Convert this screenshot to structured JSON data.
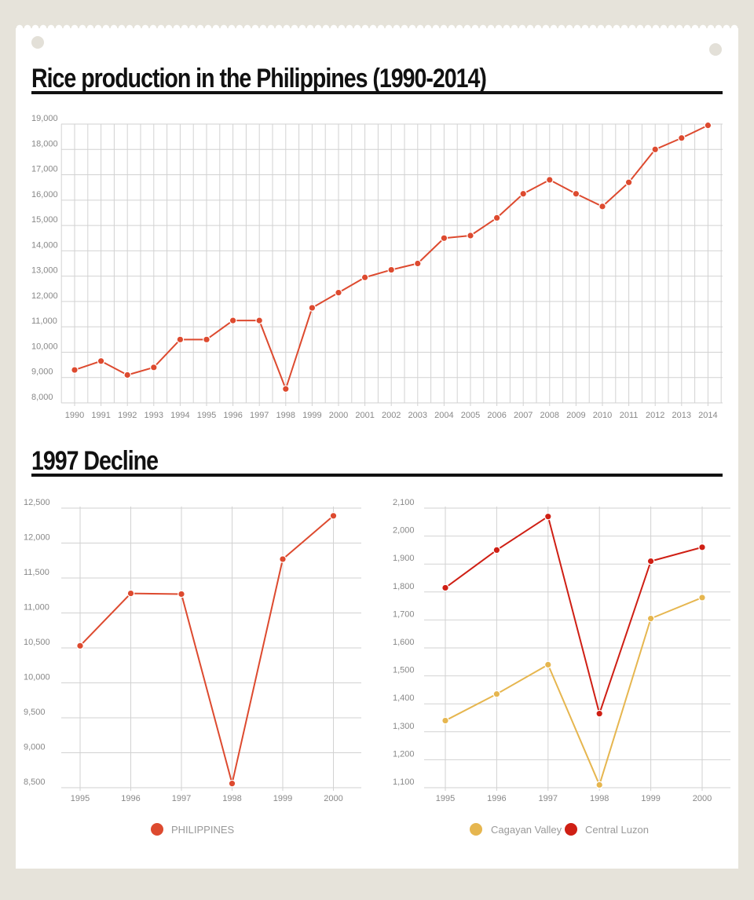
{
  "chart_data": [
    {
      "type": "line",
      "title": "Rice production in the Philippines (1990-2014)",
      "x": [
        "1990",
        "1991",
        "1992",
        "1993",
        "1994",
        "1995",
        "1996",
        "1997",
        "1998",
        "1999",
        "2000",
        "2001",
        "2002",
        "2003",
        "2004",
        "2005",
        "2006",
        "2007",
        "2008",
        "2009",
        "2010",
        "2011",
        "2012",
        "2013",
        "2014"
      ],
      "series": [
        {
          "name": "Philippines",
          "color": "#dd4a2f",
          "values": [
            9300,
            9650,
            9100,
            9400,
            10500,
            10500,
            11250,
            11250,
            8550,
            11750,
            12350,
            12950,
            13250,
            13500,
            14500,
            14600,
            15300,
            16250,
            16800,
            16250,
            15750,
            16700,
            18000,
            18450,
            18950
          ]
        }
      ],
      "ylim": [
        8000,
        19000
      ],
      "yticks": [
        8000,
        9000,
        10000,
        11000,
        12000,
        13000,
        14000,
        15000,
        16000,
        17000,
        18000,
        19000
      ],
      "ytick_labels": [
        "8,000",
        "9,000",
        "10,000",
        "11,000",
        "12,000",
        "13,000",
        "14,000",
        "15,000",
        "16,000",
        "17,000",
        "18,000",
        "19,000"
      ],
      "grid": true
    },
    {
      "type": "line",
      "title": "1997 Decline",
      "x": [
        "1995",
        "1996",
        "1997",
        "1998",
        "1999",
        "2000"
      ],
      "series": [
        {
          "name": "PHILIPPINES",
          "color": "#dd4a2f",
          "values": [
            10530,
            11280,
            11270,
            8560,
            11770,
            12390
          ]
        }
      ],
      "ylim": [
        8500,
        12500
      ],
      "yticks": [
        8500,
        9000,
        9500,
        10000,
        10500,
        11000,
        11500,
        12000,
        12500
      ],
      "ytick_labels": [
        "8,500",
        "9,000",
        "9,500",
        "10,000",
        "10,500",
        "11,000",
        "11,500",
        "12,000",
        "12,500"
      ],
      "legend": [
        "PHILIPPINES"
      ],
      "legend_position": "bottom",
      "grid": true
    },
    {
      "type": "line",
      "title": "1997 Decline",
      "x": [
        "1995",
        "1996",
        "1997",
        "1998",
        "1999",
        "2000"
      ],
      "series": [
        {
          "name": "Cagayan Valley",
          "color": "#e6b64f",
          "values": [
            1340,
            1435,
            1540,
            1110,
            1705,
            1780
          ]
        },
        {
          "name": "Central Luzon",
          "color": "#cf1f14",
          "values": [
            1815,
            1950,
            2070,
            1365,
            1910,
            1960
          ]
        }
      ],
      "ylim": [
        1100,
        2100
      ],
      "yticks": [
        1100,
        1200,
        1300,
        1400,
        1500,
        1600,
        1700,
        1800,
        1900,
        2000,
        2100
      ],
      "ytick_labels": [
        "1,100",
        "1,200",
        "1,300",
        "1,400",
        "1,500",
        "1,600",
        "1,700",
        "1,800",
        "1,900",
        "2,000",
        "2,100"
      ],
      "legend": [
        "Cagayan Valley",
        "Central Luzon"
      ],
      "legend_position": "bottom",
      "grid": true
    }
  ],
  "headings": {
    "main": "Rice production in the Philippines (1990-2014)",
    "decline": "1997 Decline"
  }
}
